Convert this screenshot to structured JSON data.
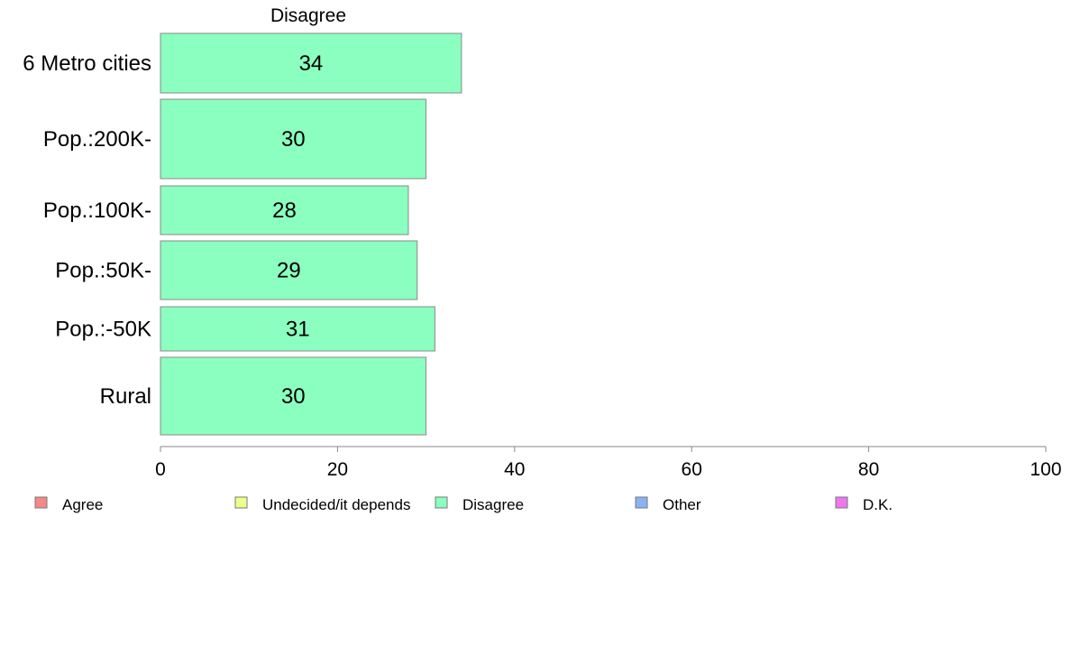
{
  "chart_data": {
    "type": "bar",
    "orientation": "horizontal",
    "title": "Disagree",
    "categories": [
      "6 Metro cities",
      "Pop.:200K-",
      "Pop.:100K-",
      "Pop.:50K-",
      "Pop.:-50K",
      "Rural"
    ],
    "series": [
      {
        "name": "Disagree",
        "values": [
          34,
          30,
          28,
          29,
          31,
          30
        ],
        "color": "#8bffbf"
      }
    ],
    "xlim": [
      0,
      100
    ],
    "xticks": [
      0,
      20,
      40,
      60,
      80,
      100
    ],
    "grid": false,
    "legend_position": "bottom",
    "legend": [
      {
        "label": "Agree",
        "color": "#f48888"
      },
      {
        "label": "Undecided/it depends",
        "color": "#eeff88"
      },
      {
        "label": "Disagree",
        "color": "#8bffbf"
      },
      {
        "label": "Other",
        "color": "#88b4f4"
      },
      {
        "label": "D.K.",
        "color": "#ee77ee"
      }
    ]
  }
}
